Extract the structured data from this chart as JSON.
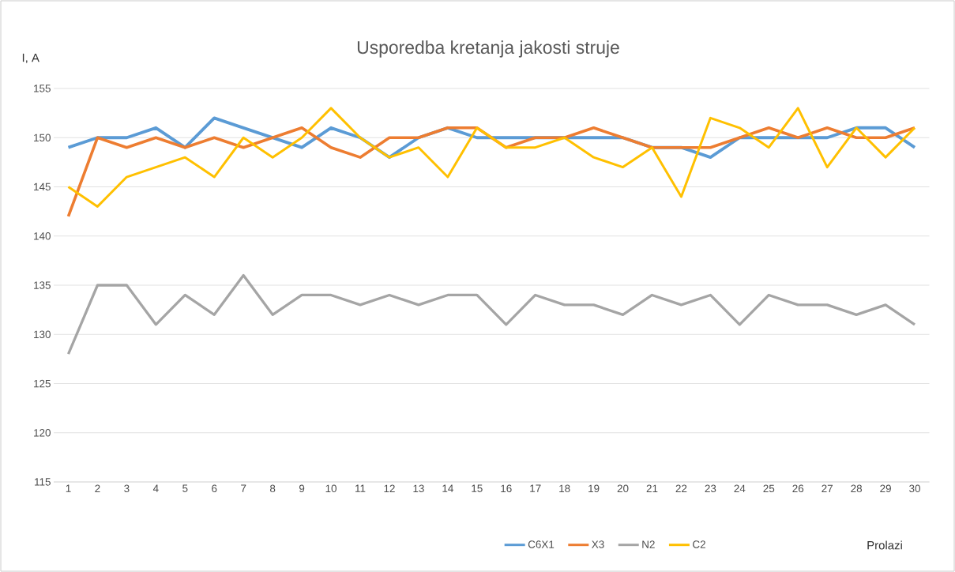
{
  "chart_data": {
    "type": "line",
    "title": "Usporedba kretanja jakosti struje",
    "xlabel": "Prolazi",
    "ylabel": "I, A",
    "categories": [
      "1",
      "2",
      "3",
      "4",
      "5",
      "6",
      "7",
      "8",
      "9",
      "10",
      "11",
      "12",
      "13",
      "14",
      "15",
      "16",
      "17",
      "18",
      "19",
      "20",
      "21",
      "22",
      "23",
      "24",
      "25",
      "26",
      "27",
      "28",
      "29",
      "30"
    ],
    "series": [
      {
        "name": "C6X1",
        "color": "#5b9bd5",
        "values": [
          149,
          150,
          150,
          151,
          149,
          152,
          151,
          150,
          149,
          151,
          150,
          148,
          150,
          151,
          150,
          150,
          150,
          150,
          150,
          150,
          149,
          149,
          148,
          150,
          150,
          150,
          150,
          151,
          151,
          149
        ]
      },
      {
        "name": "X3",
        "color": "#ed7d31",
        "values": [
          142,
          150,
          149,
          150,
          149,
          150,
          149,
          150,
          151,
          149,
          148,
          150,
          150,
          151,
          151,
          149,
          150,
          150,
          151,
          150,
          149,
          149,
          149,
          150,
          151,
          150,
          151,
          150,
          150,
          151
        ]
      },
      {
        "name": "N2",
        "color": "#a5a5a5",
        "values": [
          128,
          135,
          135,
          131,
          134,
          132,
          136,
          132,
          134,
          134,
          133,
          134,
          133,
          134,
          134,
          131,
          134,
          133,
          133,
          132,
          134,
          133,
          134,
          131,
          134,
          133,
          133,
          132,
          133,
          131
        ]
      },
      {
        "name": "C2",
        "color": "#ffc000",
        "values": [
          145,
          143,
          146,
          147,
          148,
          146,
          150,
          148,
          150,
          153,
          150,
          148,
          149,
          146,
          151,
          149,
          149,
          150,
          148,
          147,
          149,
          144,
          152,
          151,
          149,
          153,
          147,
          151,
          148,
          151
        ]
      }
    ],
    "ylim": [
      115,
      155
    ],
    "yticks": [
      115,
      120,
      125,
      130,
      135,
      140,
      145,
      150,
      155
    ],
    "grid": "y",
    "legend": "bottom",
    "marker": "none",
    "line_style": "solid"
  }
}
